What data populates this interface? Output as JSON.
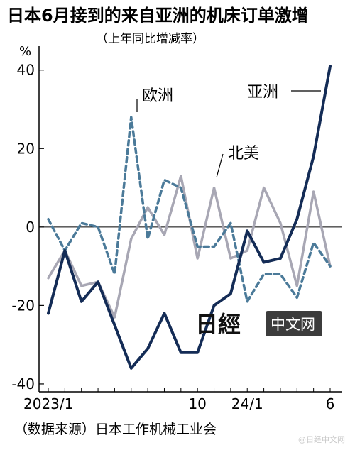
{
  "title": "日本6月接到的来自亚洲的机床订单激增",
  "subtitle": "（上年同比增减率）",
  "source": "（数据来源）日本工作机械工业会",
  "watermark": {
    "logo_text": "日經",
    "box_text": "中文网"
  },
  "footer_watermark": "@日经中文网",
  "colors": {
    "asia": "#142c56",
    "europe": "#4b7a99",
    "north_america": "#a8a7b4",
    "axis": "#000000"
  },
  "chart_data": {
    "type": "line",
    "title": "日本6月接到的来自亚洲的机床订单激增",
    "subtitle": "（上年同比增减率）",
    "y_unit": "%",
    "ylim": [
      -42,
      47
    ],
    "yticks": [
      40,
      20,
      0,
      -20,
      -40
    ],
    "ytick_labels": [
      "40",
      "20",
      "0",
      "-20",
      "-40"
    ],
    "x": [
      "2023/1",
      "2023/2",
      "2023/3",
      "2023/4",
      "2023/5",
      "2023/6",
      "2023/7",
      "2023/8",
      "2023/9",
      "2023/10",
      "2023/11",
      "2023/12",
      "2024/1",
      "2024/2",
      "2024/3",
      "2024/4",
      "2024/5",
      "2024/6"
    ],
    "xtick_labels": [
      {
        "index": 0,
        "label": "2023/1"
      },
      {
        "index": 9,
        "label": "10"
      },
      {
        "index": 12,
        "label": "24/1"
      },
      {
        "index": 17,
        "label": "6"
      }
    ],
    "grid": false,
    "series": [
      {
        "name": "亚洲",
        "style": "solid",
        "color": "#142c56",
        "values": [
          -22,
          -6,
          -19,
          -14,
          -25,
          -36,
          -31,
          -22,
          -32,
          -32,
          -20,
          -17,
          -1,
          -9,
          -8,
          2,
          18,
          41
        ]
      },
      {
        "name": "欧洲",
        "style": "dashed",
        "color": "#4b7a99",
        "values": [
          2,
          -6,
          1,
          0,
          -12,
          28,
          -3,
          12,
          10,
          -5,
          -5,
          1,
          -19,
          -12,
          -12,
          -18,
          -4,
          -10
        ]
      },
      {
        "name": "北美",
        "style": "solid",
        "color": "#a8a7b4",
        "values": [
          -13,
          -6,
          -15,
          -14,
          -23,
          -3,
          5,
          -2,
          13,
          -8,
          10,
          -8,
          -6,
          10,
          1,
          -15,
          9,
          -10
        ]
      }
    ],
    "annotations": [
      {
        "text": "欧洲",
        "series": "欧洲"
      },
      {
        "text": "亚洲",
        "series": "亚洲"
      },
      {
        "text": "北美",
        "series": "北美"
      }
    ]
  }
}
